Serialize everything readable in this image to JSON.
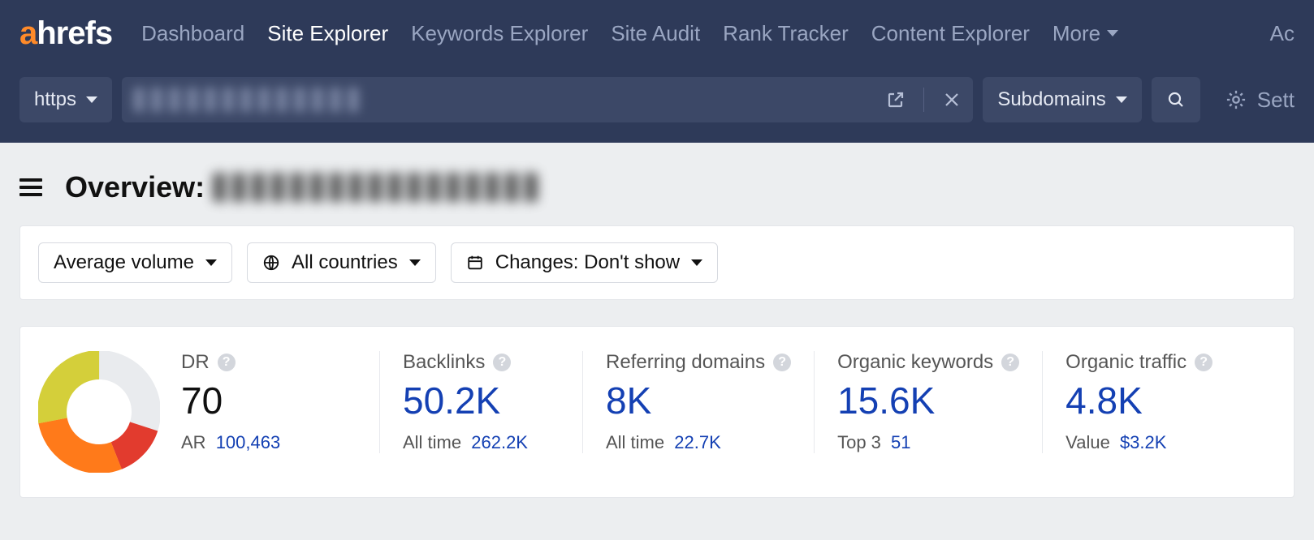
{
  "brand": {
    "first": "a",
    "rest": "hrefs"
  },
  "nav": {
    "items": [
      "Dashboard",
      "Site Explorer",
      "Keywords Explorer",
      "Site Audit",
      "Rank Tracker",
      "Content Explorer"
    ],
    "active_index": 1,
    "more_label": "More",
    "right_cut": "Ac"
  },
  "searchbar": {
    "protocol": "https",
    "scope": "Subdomains",
    "settings_label": "Sett"
  },
  "overview": {
    "label": "Overview:"
  },
  "filters": {
    "volume": "Average volume",
    "country": "All countries",
    "changes": "Changes: Don't show"
  },
  "donut": {
    "segments": [
      {
        "color": "#e9ebee",
        "fraction": 0.3
      },
      {
        "color": "#e23b2e",
        "fraction": 0.14
      },
      {
        "color": "#ff7a1a",
        "fraction": 0.28
      },
      {
        "color": "#d4cf3a",
        "fraction": 0.28
      }
    ],
    "thickness": 36,
    "radius": 58
  },
  "metrics": {
    "dr": {
      "label": "DR",
      "value": "70",
      "sub_label": "AR",
      "sub_value": "100,463"
    },
    "bl": {
      "label": "Backlinks",
      "value": "50.2K",
      "sub_label": "All time",
      "sub_value": "262.2K"
    },
    "rd": {
      "label": "Referring domains",
      "value": "8K",
      "sub_label": "All time",
      "sub_value": "22.7K"
    },
    "ok": {
      "label": "Organic keywords",
      "value": "15.6K",
      "sub_label": "Top 3",
      "sub_value": "51"
    },
    "ot": {
      "label": "Organic traffic",
      "value": "4.8K",
      "sub_label": "Value",
      "sub_value": "$3.2K"
    }
  },
  "colors": {
    "topbar": "#2e3a59",
    "accent": "#ff8a29",
    "link": "#1440b3"
  }
}
